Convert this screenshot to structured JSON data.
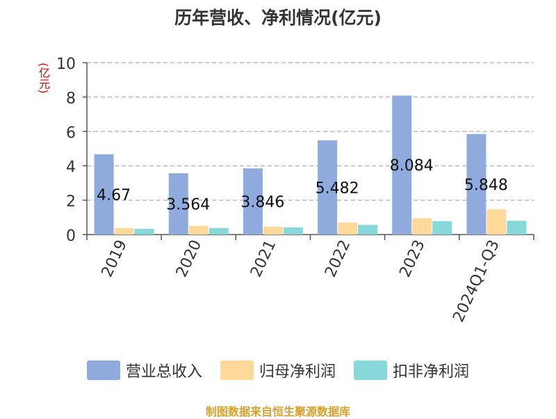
{
  "chart_data": {
    "type": "bar",
    "title": "历年营收、净利情况(亿元)",
    "ylabel": "(亿元)",
    "categories": [
      "2019",
      "2020",
      "2021",
      "2022",
      "2023",
      "2024Q1-Q3"
    ],
    "ylim": [
      0,
      10
    ],
    "yticks": [
      0,
      2,
      4,
      6,
      8,
      10
    ],
    "grid": true,
    "series": [
      {
        "name": "营业总收入",
        "color": "#8faadc",
        "values": [
          4.67,
          3.564,
          3.846,
          5.482,
          8.084,
          5.848
        ],
        "data_labels": [
          "4.67",
          "3.564",
          "3.846",
          "5.482",
          "8.084",
          "5.848"
        ]
      },
      {
        "name": "归母净利润",
        "color": "#ffd99a",
        "values": [
          0.38,
          0.5,
          0.46,
          0.7,
          0.95,
          1.47
        ]
      },
      {
        "name": "扣非净利润",
        "color": "#86d8da",
        "values": [
          0.33,
          0.38,
          0.42,
          0.56,
          0.78,
          0.8
        ]
      }
    ],
    "legend_position": "bottom"
  },
  "footer": "制图数据来自恒生聚源数据库"
}
